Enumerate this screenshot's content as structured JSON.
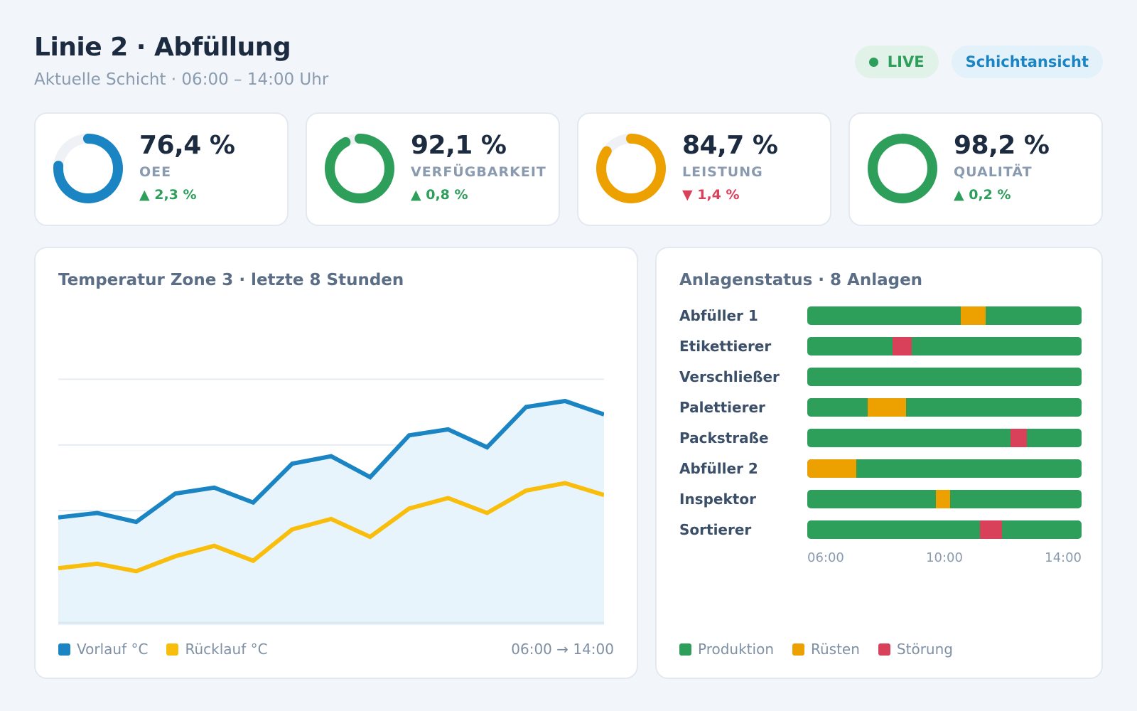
{
  "header": {
    "title": "Linie 2 · Abfüllung",
    "subtitle": "Aktuelle Schicht · 06:00 – 14:00 Uhr",
    "live_label": "LIVE",
    "shift_button": "Schichtansicht"
  },
  "colors": {
    "blue": "#1b85c4",
    "green": "#2e9e5b",
    "orange": "#eda100",
    "yellow": "#f9bd0b",
    "red": "#d9405a"
  },
  "kpis": [
    {
      "value": "76,4 %",
      "label": "OEE",
      "delta": "▲ 2,3 %",
      "trend": "up",
      "fraction": 0.764,
      "color": "#1b85c4"
    },
    {
      "value": "92,1 %",
      "label": "VERFÜGBARKEIT",
      "delta": "▲ 0,8 %",
      "trend": "up",
      "fraction": 0.921,
      "color": "#2e9e5b"
    },
    {
      "value": "84,7 %",
      "label": "LEISTUNG",
      "delta": "▼ 1,4 %",
      "trend": "down",
      "fraction": 0.847,
      "color": "#eda100"
    },
    {
      "value": "98,2 %",
      "label": "QUALITÄT",
      "delta": "▲ 0,2 %",
      "trend": "up",
      "fraction": 0.982,
      "color": "#2e9e5b"
    }
  ],
  "temperature_panel": {
    "title": "Temperatur Zone 3 · letzte 8 Stunden",
    "legend": [
      {
        "name": "Vorlauf °C",
        "color": "#1b85c4"
      },
      {
        "name": "Rücklauf °C",
        "color": "#f9bd0b"
      }
    ],
    "range_label": "06:00 → 14:00"
  },
  "chart_data": {
    "type": "line",
    "title": "Temperatur Zone 3 · letzte 8 Stunden",
    "x_start": "06:00",
    "x_end": "14:00",
    "grid": true,
    "series": [
      {
        "name": "Vorlauf °C",
        "color": "#1b85c4",
        "values": [
          4.2,
          4.5,
          3.9,
          5.8,
          6.2,
          5.2,
          7.8,
          8.3,
          6.9,
          9.7,
          10.1,
          8.9,
          11.6,
          12.0,
          11.1
        ]
      },
      {
        "name": "Rücklauf °C",
        "color": "#f9bd0b",
        "values": [
          0.8,
          1.1,
          0.6,
          1.6,
          2.3,
          1.3,
          3.4,
          4.1,
          2.9,
          4.8,
          5.5,
          4.5,
          6.0,
          6.5,
          5.7
        ]
      }
    ],
    "y_range": [
      -3,
      17
    ]
  },
  "status_panel": {
    "title": "Anlagenstatus · 8 Anlagen",
    "axis_labels": [
      "06:00",
      "10:00",
      "14:00"
    ],
    "legend": [
      {
        "name": "Produktion",
        "color": "#2e9e5b"
      },
      {
        "name": "Rüsten",
        "color": "#eda100"
      },
      {
        "name": "Störung",
        "color": "#d9405a"
      }
    ],
    "machines": [
      {
        "name": "Abfüller 1",
        "segments": [
          {
            "type": "Rüsten",
            "start": 0.56,
            "end": 0.65
          }
        ]
      },
      {
        "name": "Etikettierer",
        "segments": [
          {
            "type": "Störung",
            "start": 0.31,
            "end": 0.38
          }
        ]
      },
      {
        "name": "Verschließer",
        "segments": []
      },
      {
        "name": "Palettierer",
        "segments": [
          {
            "type": "Rüsten",
            "start": 0.22,
            "end": 0.36
          }
        ]
      },
      {
        "name": "Packstraße",
        "segments": [
          {
            "type": "Störung",
            "start": 0.74,
            "end": 0.8
          }
        ]
      },
      {
        "name": "Abfüller 2",
        "segments": [
          {
            "type": "Rüsten",
            "start": 0.0,
            "end": 0.18
          }
        ]
      },
      {
        "name": "Inspektor",
        "segments": [
          {
            "type": "Rüsten",
            "start": 0.47,
            "end": 0.52
          }
        ]
      },
      {
        "name": "Sortierer",
        "segments": [
          {
            "type": "Störung",
            "start": 0.63,
            "end": 0.71
          }
        ]
      }
    ]
  }
}
